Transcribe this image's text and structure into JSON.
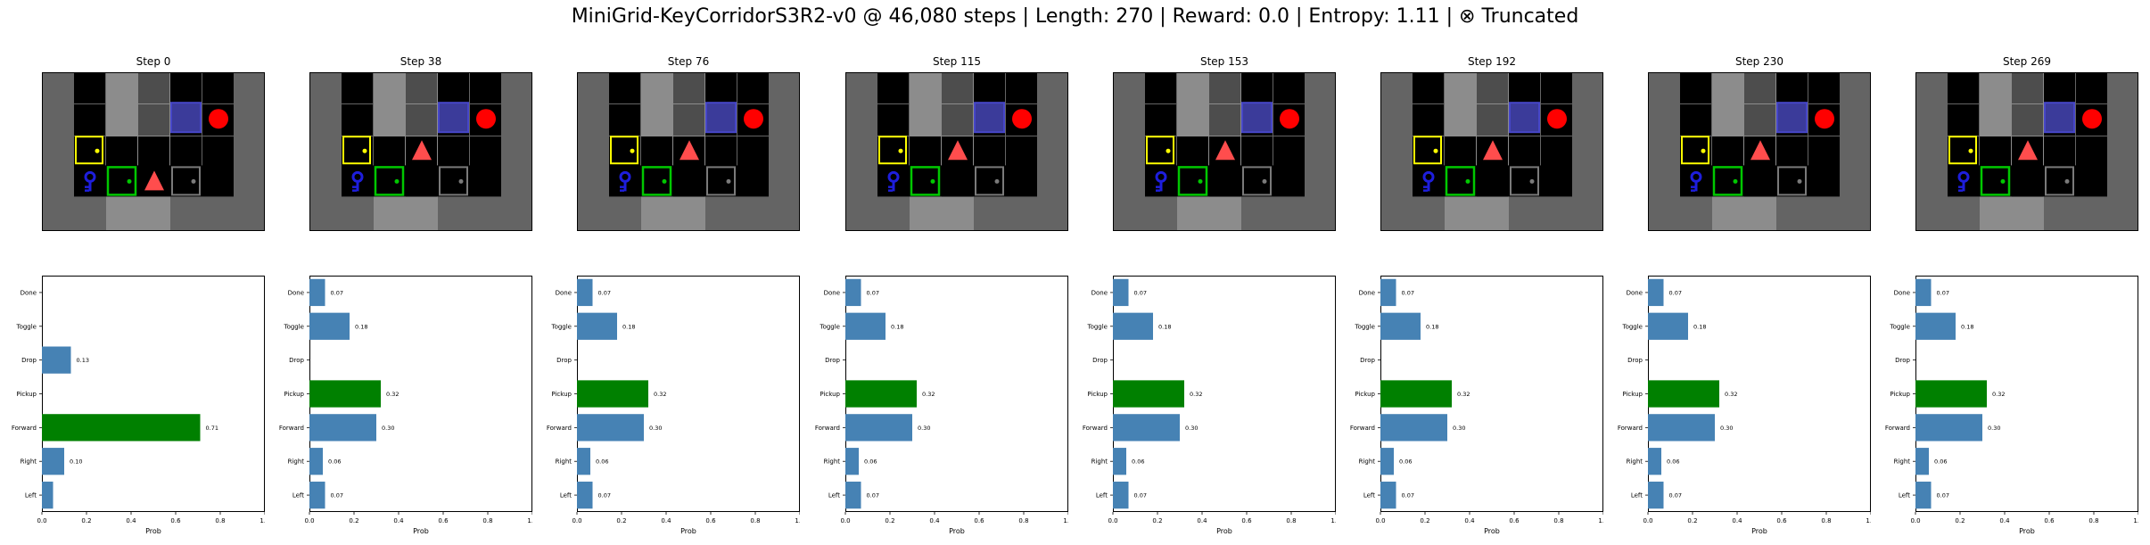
{
  "figure": {
    "title": "MiniGrid-KeyCorridorS3R2-v0 @ 46,080 steps | Length: 270 | Reward: 0.0 | Entropy: 1.11 | ⊗ Truncated"
  },
  "colors": {
    "bar_default": "#4682b4",
    "bar_selected": "#008000",
    "wall": "#646464",
    "corridor": "#8c8c8c",
    "floor": "#000000",
    "cell_dim": "#4d4d4d",
    "yellow_door": "#ffff00",
    "green_door": "#00c800",
    "grey_door": "#7a7a7a",
    "blue_door": "#4646c8",
    "ball": "#ff0000",
    "agent": "#ff4d4d",
    "key": "#1e1edc"
  },
  "panels": [
    {
      "title": "Step 0"
    },
    {
      "title": "Step 38"
    },
    {
      "title": "Step 76"
    },
    {
      "title": "Step 115"
    },
    {
      "title": "Step 153"
    },
    {
      "title": "Step 192"
    },
    {
      "title": "Step 230"
    },
    {
      "title": "Step 269"
    }
  ],
  "chart_data": [
    {
      "type": "bar",
      "orientation": "horizontal",
      "title": "Step 0",
      "categories": [
        "Left",
        "Right",
        "Forward",
        "Pickup",
        "Drop",
        "Toggle",
        "Done"
      ],
      "values": [
        0.05,
        0.1,
        0.71,
        0.0,
        0.13,
        0.0,
        0.0
      ],
      "value_labels": [
        "",
        "0.10",
        "0.71",
        "",
        "0.13",
        "",
        ""
      ],
      "selected": "Forward",
      "xlabel": "Prob",
      "xlim": [
        0,
        1
      ],
      "xticks": [
        "0.0",
        "0.2",
        "0.4",
        "0.6",
        "0.8",
        "1.0"
      ]
    },
    {
      "type": "bar",
      "orientation": "horizontal",
      "title": "Step 38",
      "categories": [
        "Left",
        "Right",
        "Forward",
        "Pickup",
        "Drop",
        "Toggle",
        "Done"
      ],
      "values": [
        0.07,
        0.06,
        0.3,
        0.32,
        0.0,
        0.18,
        0.07
      ],
      "value_labels": [
        "0.07",
        "0.06",
        "0.30",
        "0.32",
        "",
        "0.18",
        "0.07"
      ],
      "selected": "Pickup",
      "xlabel": "Prob",
      "xlim": [
        0,
        1
      ],
      "xticks": [
        "0.0",
        "0.2",
        "0.4",
        "0.6",
        "0.8",
        "1.0"
      ]
    },
    {
      "type": "bar",
      "orientation": "horizontal",
      "title": "Step 76",
      "categories": [
        "Left",
        "Right",
        "Forward",
        "Pickup",
        "Drop",
        "Toggle",
        "Done"
      ],
      "values": [
        0.07,
        0.06,
        0.3,
        0.32,
        0.0,
        0.18,
        0.07
      ],
      "value_labels": [
        "0.07",
        "0.06",
        "0.30",
        "0.32",
        "",
        "0.18",
        "0.07"
      ],
      "selected": "Pickup",
      "xlabel": "Prob",
      "xlim": [
        0,
        1
      ],
      "xticks": [
        "0.0",
        "0.2",
        "0.4",
        "0.6",
        "0.8",
        "1.0"
      ]
    },
    {
      "type": "bar",
      "orientation": "horizontal",
      "title": "Step 115",
      "categories": [
        "Left",
        "Right",
        "Forward",
        "Pickup",
        "Drop",
        "Toggle",
        "Done"
      ],
      "values": [
        0.07,
        0.06,
        0.3,
        0.32,
        0.0,
        0.18,
        0.07
      ],
      "value_labels": [
        "0.07",
        "0.06",
        "0.30",
        "0.32",
        "",
        "0.18",
        "0.07"
      ],
      "selected": "Pickup",
      "xlabel": "Prob",
      "xlim": [
        0,
        1
      ],
      "xticks": [
        "0.0",
        "0.2",
        "0.4",
        "0.6",
        "0.8",
        "1.0"
      ]
    },
    {
      "type": "bar",
      "orientation": "horizontal",
      "title": "Step 153",
      "categories": [
        "Left",
        "Right",
        "Forward",
        "Pickup",
        "Drop",
        "Toggle",
        "Done"
      ],
      "values": [
        0.07,
        0.06,
        0.3,
        0.32,
        0.0,
        0.18,
        0.07
      ],
      "value_labels": [
        "0.07",
        "0.06",
        "0.30",
        "0.32",
        "",
        "0.18",
        "0.07"
      ],
      "selected": "Pickup",
      "xlabel": "Prob",
      "xlim": [
        0,
        1
      ],
      "xticks": [
        "0.0",
        "0.2",
        "0.4",
        "0.6",
        "0.8",
        "1.0"
      ]
    },
    {
      "type": "bar",
      "orientation": "horizontal",
      "title": "Step 192",
      "categories": [
        "Left",
        "Right",
        "Forward",
        "Pickup",
        "Drop",
        "Toggle",
        "Done"
      ],
      "values": [
        0.07,
        0.06,
        0.3,
        0.32,
        0.0,
        0.18,
        0.07
      ],
      "value_labels": [
        "0.07",
        "0.06",
        "0.30",
        "0.32",
        "",
        "0.18",
        "0.07"
      ],
      "selected": "Pickup",
      "xlabel": "Prob",
      "xlim": [
        0,
        1
      ],
      "xticks": [
        "0.0",
        "0.2",
        "0.4",
        "0.6",
        "0.8",
        "1.0"
      ]
    },
    {
      "type": "bar",
      "orientation": "horizontal",
      "title": "Step 230",
      "categories": [
        "Left",
        "Right",
        "Forward",
        "Pickup",
        "Drop",
        "Toggle",
        "Done"
      ],
      "values": [
        0.07,
        0.06,
        0.3,
        0.32,
        0.0,
        0.18,
        0.07
      ],
      "value_labels": [
        "0.07",
        "0.06",
        "0.30",
        "0.32",
        "",
        "0.18",
        "0.07"
      ],
      "selected": "Pickup",
      "xlabel": "Prob",
      "xlim": [
        0,
        1
      ],
      "xticks": [
        "0.0",
        "0.2",
        "0.4",
        "0.6",
        "0.8",
        "1.0"
      ]
    },
    {
      "type": "bar",
      "orientation": "horizontal",
      "title": "Step 269",
      "categories": [
        "Left",
        "Right",
        "Forward",
        "Pickup",
        "Drop",
        "Toggle",
        "Done"
      ],
      "values": [
        0.07,
        0.06,
        0.3,
        0.32,
        0.0,
        0.18,
        0.07
      ],
      "value_labels": [
        "0.07",
        "0.06",
        "0.30",
        "0.32",
        "",
        "0.18",
        "0.07"
      ],
      "selected": "Pickup",
      "xlabel": "Prob",
      "xlim": [
        0,
        1
      ],
      "xticks": [
        "0.0",
        "0.2",
        "0.4",
        "0.6",
        "0.8",
        "1.0"
      ]
    }
  ]
}
